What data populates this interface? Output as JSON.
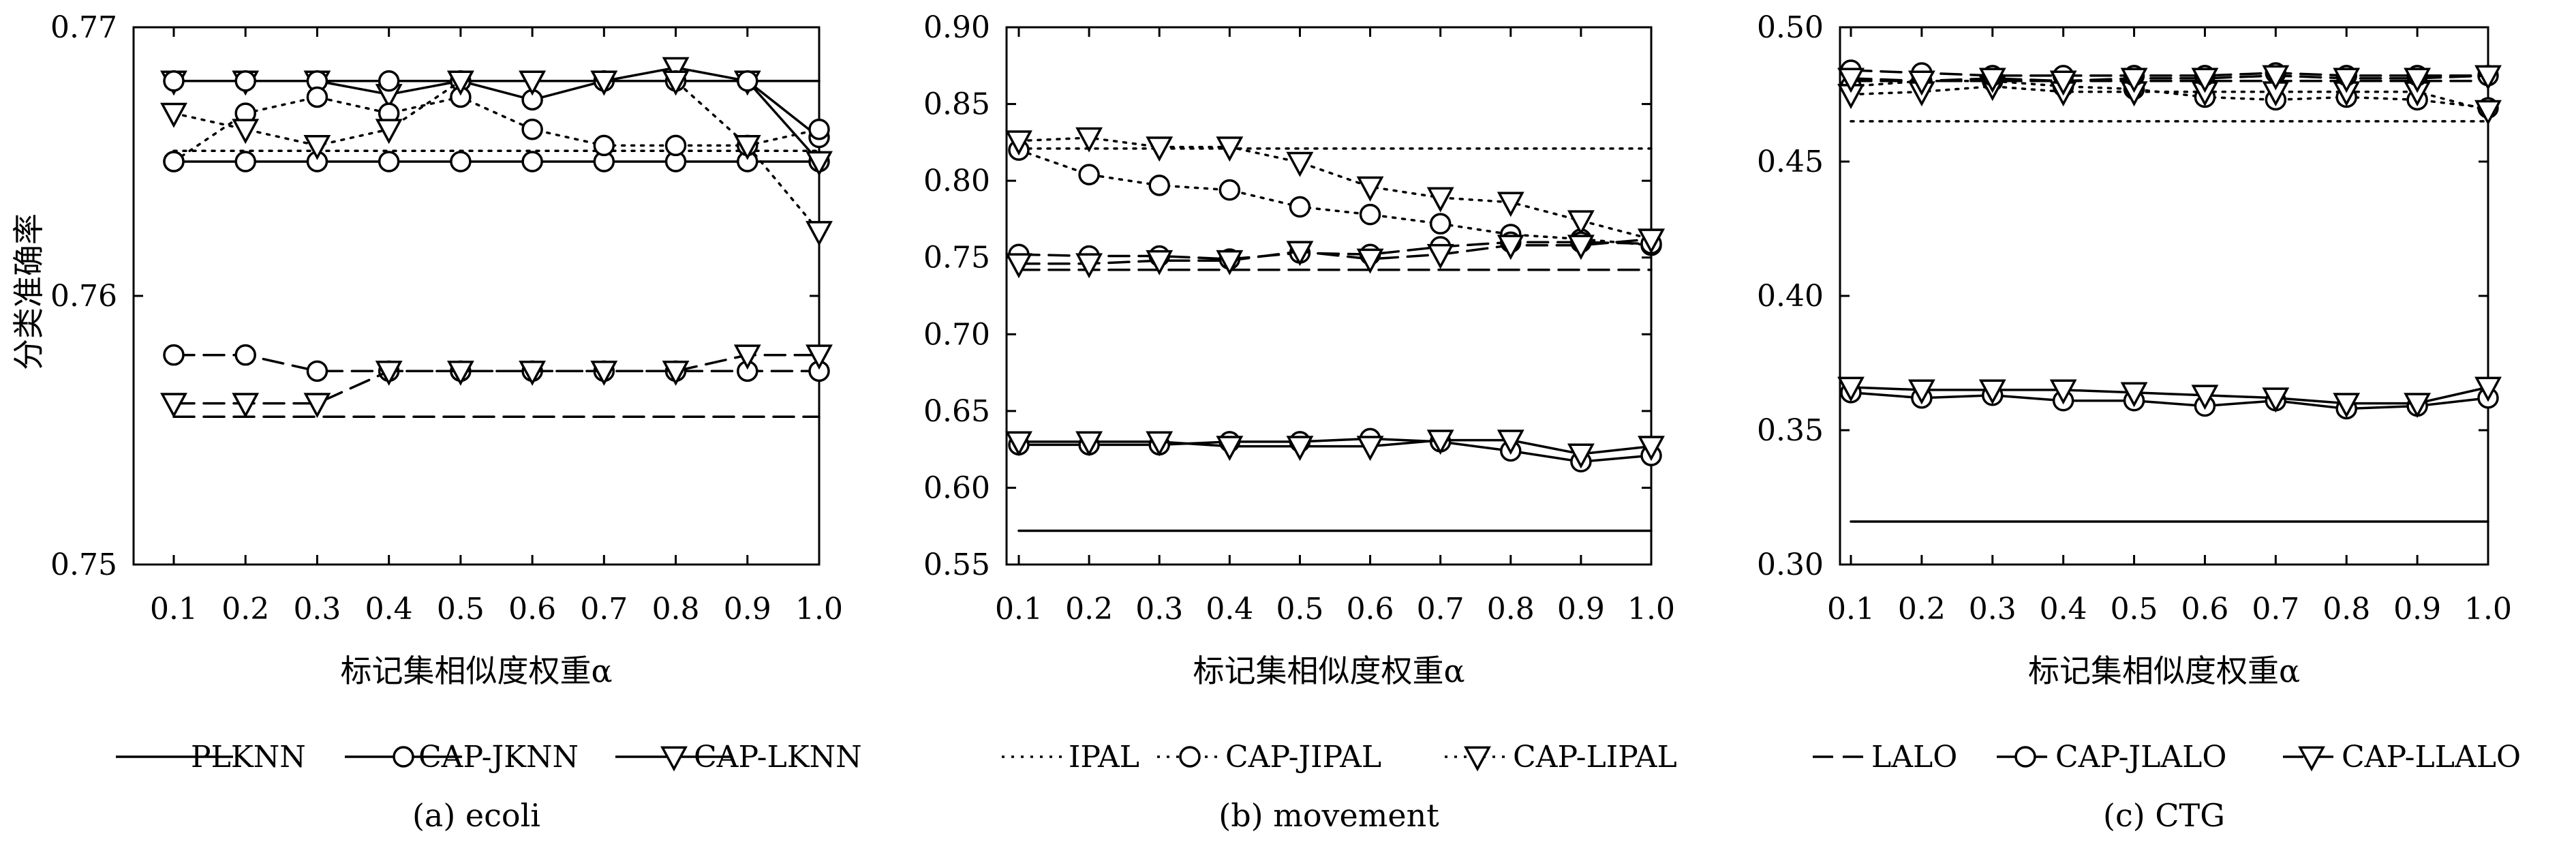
{
  "figure": {
    "ylabel": "分类准确率",
    "xlabel": "标记集相似度权重α"
  },
  "chart_data": [
    {
      "type": "line",
      "caption": "(a) ecoli",
      "xlabel": "标记集相似度权重α",
      "ylabel": "分类准确率",
      "x": [
        0.1,
        0.2,
        0.3,
        0.4,
        0.5,
        0.6,
        0.7,
        0.8,
        0.9,
        1.0
      ],
      "x_ticks": [
        "0.1",
        "0.2",
        "0.3",
        "0.4",
        "0.5",
        "0.6",
        "0.7",
        "0.8",
        "0.9",
        "1.0"
      ],
      "ylim": [
        0.75,
        0.77
      ],
      "y_ticks": [
        "0.75",
        "0.76",
        "0.77"
      ],
      "grid": false,
      "legend_position": "below",
      "series": [
        {
          "name": "PLKNN",
          "style": "solid",
          "marker": "none",
          "values": [
            0.768,
            0.768,
            0.768,
            0.768,
            0.768,
            0.768,
            0.768,
            0.768,
            0.768,
            0.768
          ]
        },
        {
          "name": "CAP-JKNN",
          "style": "solid",
          "marker": "circle",
          "values": [
            0.765,
            0.765,
            0.765,
            0.765,
            0.765,
            0.765,
            0.765,
            0.765,
            0.765,
            0.765
          ]
        },
        {
          "name": "CAP-LKNN",
          "style": "solid",
          "marker": "triangle",
          "values": [
            0.768,
            0.768,
            0.768,
            0.7675,
            0.768,
            0.768,
            0.768,
            0.7685,
            0.768,
            0.765
          ]
        },
        {
          "name": "",
          "style": "solid",
          "marker": "circle",
          "values": [
            0.768,
            0.768,
            0.768,
            0.768,
            0.768,
            0.7673,
            0.768,
            0.768,
            0.768,
            0.7659
          ]
        },
        {
          "name": "",
          "style": "dotted",
          "marker": "none",
          "values": [
            0.7654,
            0.7654,
            0.7654,
            0.7654,
            0.7654,
            0.7654,
            0.7654,
            0.7654,
            0.7654,
            0.7654
          ]
        },
        {
          "name": "",
          "style": "dotted",
          "marker": "circle",
          "values": [
            0.765,
            0.7668,
            0.7674,
            0.7668,
            0.7674,
            0.7662,
            0.7656,
            0.7656,
            0.7656,
            0.7662
          ]
        },
        {
          "name": "",
          "style": "dotted",
          "marker": "triangle",
          "values": [
            0.7668,
            0.7662,
            0.7656,
            0.7662,
            0.768,
            0.768,
            0.768,
            0.768,
            0.7656,
            0.7624
          ]
        },
        {
          "name": "",
          "style": "dashed",
          "marker": "none",
          "values": [
            0.7555,
            0.7555,
            0.7555,
            0.7555,
            0.7555,
            0.7555,
            0.7555,
            0.7555,
            0.7555,
            0.7555
          ]
        },
        {
          "name": "",
          "style": "dashed",
          "marker": "circle",
          "values": [
            0.7578,
            0.7578,
            0.7572,
            0.7572,
            0.7572,
            0.7572,
            0.7572,
            0.7572,
            0.7572,
            0.7572
          ]
        },
        {
          "name": "",
          "style": "dashed",
          "marker": "triangle",
          "values": [
            0.756,
            0.756,
            0.756,
            0.7572,
            0.7572,
            0.7572,
            0.7572,
            0.7572,
            0.7578,
            0.7578
          ]
        }
      ]
    },
    {
      "type": "line",
      "caption": "(b) movement",
      "xlabel": "标记集相似度权重α",
      "x": [
        0.1,
        0.2,
        0.3,
        0.4,
        0.5,
        0.6,
        0.7,
        0.8,
        0.9,
        1.0
      ],
      "x_ticks": [
        "0.1",
        "0.2",
        "0.3",
        "0.4",
        "0.5",
        "0.6",
        "0.7",
        "0.8",
        "0.9",
        "1.0"
      ],
      "ylim": [
        0.55,
        0.9
      ],
      "y_ticks": [
        "0.55",
        "0.60",
        "0.65",
        "0.70",
        "0.75",
        "0.80",
        "0.85",
        "0.90"
      ],
      "grid": false,
      "legend_position": "below",
      "series": [
        {
          "name": "",
          "style": "solid",
          "marker": "none",
          "values": [
            0.572,
            0.572,
            0.572,
            0.572,
            0.572,
            0.572,
            0.572,
            0.572,
            0.572,
            0.572
          ]
        },
        {
          "name": "",
          "style": "solid",
          "marker": "circle",
          "values": [
            0.628,
            0.628,
            0.628,
            0.63,
            0.63,
            0.632,
            0.63,
            0.624,
            0.617,
            0.621
          ]
        },
        {
          "name": "",
          "style": "solid",
          "marker": "triangle",
          "values": [
            0.63,
            0.63,
            0.63,
            0.627,
            0.627,
            0.627,
            0.631,
            0.631,
            0.622,
            0.627
          ]
        },
        {
          "name": "IPAL",
          "style": "dotted",
          "marker": "none",
          "values": [
            0.821,
            0.821,
            0.821,
            0.821,
            0.821,
            0.821,
            0.821,
            0.821,
            0.821,
            0.821
          ]
        },
        {
          "name": "CAP-JIPAL",
          "style": "dotted",
          "marker": "circle",
          "values": [
            0.82,
            0.804,
            0.797,
            0.794,
            0.783,
            0.778,
            0.772,
            0.765,
            0.762,
            0.758
          ]
        },
        {
          "name": "CAP-LIPAL",
          "style": "dotted",
          "marker": "triangle",
          "values": [
            0.826,
            0.828,
            0.822,
            0.822,
            0.812,
            0.796,
            0.789,
            0.786,
            0.774,
            0.762
          ]
        },
        {
          "name": "",
          "style": "dashed",
          "marker": "none",
          "values": [
            0.742,
            0.742,
            0.742,
            0.742,
            0.742,
            0.742,
            0.742,
            0.742,
            0.742,
            0.742
          ]
        },
        {
          "name": "",
          "style": "dashed",
          "marker": "circle",
          "values": [
            0.752,
            0.751,
            0.751,
            0.749,
            0.753,
            0.752,
            0.757,
            0.76,
            0.76,
            0.759
          ]
        },
        {
          "name": "",
          "style": "dashed",
          "marker": "triangle",
          "values": [
            0.746,
            0.746,
            0.748,
            0.748,
            0.754,
            0.749,
            0.752,
            0.758,
            0.758,
            0.762
          ]
        }
      ]
    },
    {
      "type": "line",
      "caption": "(c) CTG",
      "xlabel": "标记集相似度权重α",
      "x": [
        0.1,
        0.2,
        0.3,
        0.4,
        0.5,
        0.6,
        0.7,
        0.8,
        0.9,
        1.0
      ],
      "x_ticks": [
        "0.1",
        "0.2",
        "0.3",
        "0.4",
        "0.5",
        "0.6",
        "0.7",
        "0.8",
        "0.9",
        "1.0"
      ],
      "ylim": [
        0.3,
        0.5
      ],
      "y_ticks": [
        "0.30",
        "0.35",
        "0.40",
        "0.45",
        "0.50"
      ],
      "grid": false,
      "legend_position": "below",
      "series": [
        {
          "name": "",
          "style": "solid",
          "marker": "none",
          "values": [
            0.316,
            0.316,
            0.316,
            0.316,
            0.316,
            0.316,
            0.316,
            0.316,
            0.316,
            0.316
          ]
        },
        {
          "name": "",
          "style": "solid",
          "marker": "circle",
          "values": [
            0.364,
            0.362,
            0.363,
            0.361,
            0.361,
            0.359,
            0.361,
            0.358,
            0.359,
            0.362
          ]
        },
        {
          "name": "",
          "style": "solid",
          "marker": "triangle",
          "values": [
            0.366,
            0.365,
            0.365,
            0.365,
            0.364,
            0.363,
            0.362,
            0.36,
            0.36,
            0.366
          ]
        },
        {
          "name": "",
          "style": "dotted",
          "marker": "none",
          "values": [
            0.465,
            0.465,
            0.465,
            0.465,
            0.465,
            0.465,
            0.465,
            0.465,
            0.465,
            0.465
          ]
        },
        {
          "name": "",
          "style": "dotted",
          "marker": "circle",
          "values": [
            0.478,
            0.48,
            0.48,
            0.478,
            0.477,
            0.474,
            0.473,
            0.474,
            0.473,
            0.47
          ]
        },
        {
          "name": "",
          "style": "dotted",
          "marker": "triangle",
          "values": [
            0.475,
            0.476,
            0.478,
            0.476,
            0.476,
            0.476,
            0.476,
            0.476,
            0.476,
            0.469
          ]
        },
        {
          "name": "LALO",
          "style": "dashed",
          "marker": "none",
          "values": [
            0.48,
            0.48,
            0.48,
            0.48,
            0.48,
            0.48,
            0.48,
            0.48,
            0.48,
            0.48
          ]
        },
        {
          "name": "CAP-JLALO",
          "style": "dashed",
          "marker": "circle",
          "values": [
            0.484,
            0.483,
            0.482,
            0.482,
            0.482,
            0.482,
            0.483,
            0.482,
            0.482,
            0.482
          ]
        },
        {
          "name": "CAP-LLALO",
          "style": "dashed",
          "marker": "triangle",
          "values": [
            0.481,
            0.48,
            0.481,
            0.48,
            0.481,
            0.481,
            0.482,
            0.481,
            0.481,
            0.482
          ]
        }
      ]
    }
  ]
}
